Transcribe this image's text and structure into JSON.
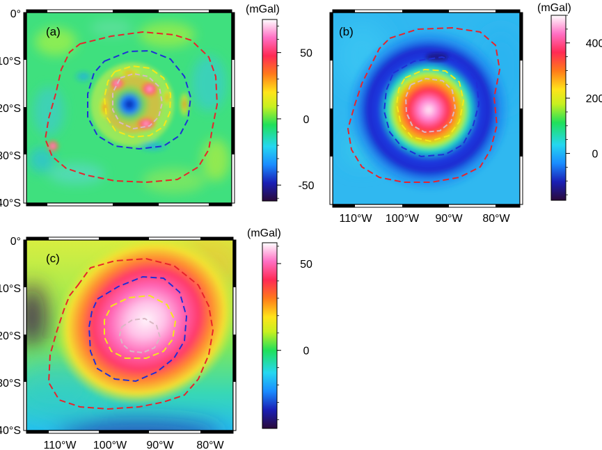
{
  "panels": [
    {
      "id": "a",
      "label": "(a)",
      "unit": "(mGal)",
      "colorbar_ticks": [
        50,
        0,
        -50
      ],
      "colorbar_range": [
        -62,
        75
      ],
      "y_ticks": [
        "0°",
        "10°S",
        "20°S",
        "30°S",
        "40°S"
      ],
      "x_ticks": []
    },
    {
      "id": "b",
      "label": "(b)",
      "unit": "(mGal)",
      "colorbar_ticks": [
        400,
        200,
        0
      ],
      "colorbar_range": [
        -170,
        500
      ],
      "y_ticks": [],
      "x_ticks": [
        "110°W",
        "100°W",
        "90°W",
        "80°W"
      ]
    },
    {
      "id": "c",
      "label": "(c)",
      "unit": "(mGal)",
      "colorbar_ticks": [
        50,
        0
      ],
      "colorbar_range": [
        -45,
        62
      ],
      "y_ticks": [
        "0°",
        "10°S",
        "20°S",
        "30°S",
        "40°S"
      ],
      "x_ticks": [
        "110°W",
        "100°W",
        "90°W",
        "80°W"
      ]
    }
  ],
  "map_extent": {
    "lon_min": -115,
    "lon_max": -75,
    "lat_min": -40,
    "lat_max": 0
  },
  "contour_colors": {
    "outer": "#e8232b",
    "middle": "#1f2fd6",
    "inner": "#f4e81a",
    "core": "#d9b8c4"
  },
  "colormap": [
    "#2a0a3a",
    "#1a1fb5",
    "#1a8cff",
    "#25d7f0",
    "#20e05a",
    "#c7f020",
    "#ffe41a",
    "#ff7a1a",
    "#ff2a55",
    "#ff70c4",
    "#ffffff"
  ]
}
